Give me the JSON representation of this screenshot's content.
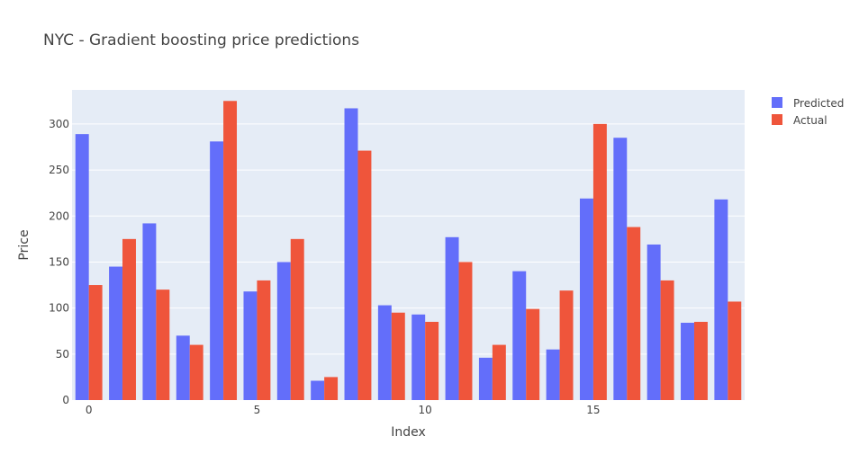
{
  "chart_data": {
    "type": "bar",
    "title": "NYC - Gradient boosting price predictions",
    "xlabel": "Index",
    "ylabel": "Price",
    "x": [
      0,
      1,
      2,
      3,
      4,
      5,
      6,
      7,
      8,
      9,
      10,
      11,
      12,
      13,
      14,
      15,
      16,
      17,
      18,
      19
    ],
    "x_ticks": [
      0,
      5,
      10,
      15
    ],
    "y_ticks": [
      0,
      50,
      100,
      150,
      200,
      250,
      300
    ],
    "ylim": [
      0,
      337
    ],
    "xlim": [
      -0.5,
      19.5
    ],
    "grid": true,
    "legend_position": "top-right",
    "series": [
      {
        "name": "Predicted",
        "color": "#636efa",
        "values": [
          289,
          145,
          192,
          70,
          281,
          118,
          150,
          21,
          317,
          103,
          93,
          177,
          46,
          140,
          55,
          219,
          285,
          169,
          84,
          218
        ]
      },
      {
        "name": "Actual",
        "color": "#ef553b",
        "values": [
          125,
          175,
          120,
          60,
          325,
          130,
          175,
          25,
          271,
          95,
          85,
          150,
          60,
          99,
          119,
          300,
          188,
          130,
          85,
          107
        ]
      }
    ]
  },
  "colors": {
    "plot_background": "#e5ecf6",
    "grid": "#ffffff"
  }
}
